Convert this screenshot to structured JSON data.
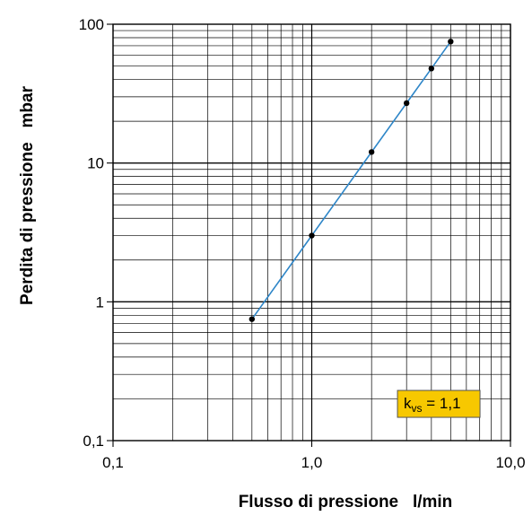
{
  "chart_data": {
    "type": "line",
    "xlabel": "Flusso di pressione   l/min",
    "ylabel": "Perdita di pressione   mbar",
    "xscale": "log",
    "yscale": "log",
    "xlim": [
      0.1,
      10.0
    ],
    "ylim": [
      0.1,
      100
    ],
    "x_ticks": [
      {
        "value": 0.1,
        "label": "0,1"
      },
      {
        "value": 1.0,
        "label": "1,0"
      },
      {
        "value": 10.0,
        "label": "10,0"
      }
    ],
    "y_ticks": [
      {
        "value": 0.1,
        "label": "0,1"
      },
      {
        "value": 1,
        "label": "1"
      },
      {
        "value": 10,
        "label": "10"
      },
      {
        "value": 100,
        "label": "100"
      }
    ],
    "grid": true,
    "series": [
      {
        "color": "#2e86c8",
        "x": [
          0.5,
          1.0,
          2.0,
          3.0,
          4.0,
          5.0
        ],
        "y": [
          0.75,
          3.0,
          12.0,
          27.0,
          48.0,
          75.0
        ]
      }
    ],
    "annotation": {
      "k": "k",
      "sub": "vs",
      "rest": " = 1,1",
      "background": "#f7c800",
      "x": 2.7,
      "y": 0.23
    }
  }
}
